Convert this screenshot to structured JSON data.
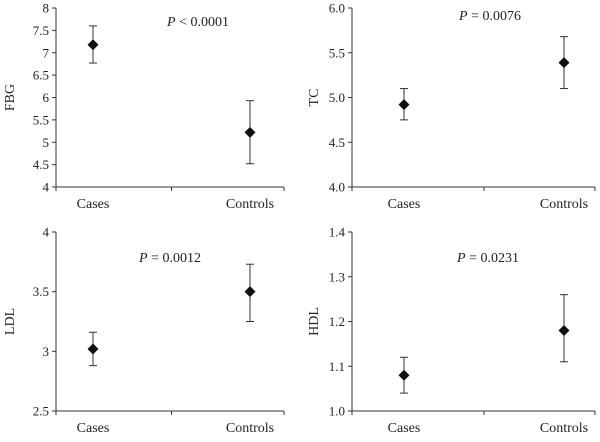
{
  "chart_data": [
    {
      "type": "scatter",
      "ylabel": "FBG",
      "categories": [
        "Cases",
        "Controls"
      ],
      "ylim": [
        4,
        8
      ],
      "yticks": [
        "4",
        "4.5",
        "5",
        "5.5",
        "6",
        "6.5",
        "7",
        "7.5",
        "8"
      ],
      "values": [
        7.18,
        5.22
      ],
      "err_low": [
        6.77,
        4.52
      ],
      "err_high": [
        7.6,
        5.93
      ],
      "annotation": {
        "italic": "P",
        "rest": " < 0.0001"
      },
      "grid": false
    },
    {
      "type": "scatter",
      "ylabel": "TC",
      "categories": [
        "Cases",
        "Controls"
      ],
      "ylim": [
        4.0,
        6.0
      ],
      "yticks": [
        "4.0",
        "4.5",
        "5.0",
        "5.5",
        "6.0"
      ],
      "values": [
        4.92,
        5.39
      ],
      "err_low": [
        4.75,
        5.1
      ],
      "err_high": [
        5.1,
        5.68
      ],
      "annotation": {
        "italic": "P",
        "rest": " = 0.0076"
      },
      "grid": false
    },
    {
      "type": "scatter",
      "ylabel": "LDL",
      "categories": [
        "Cases",
        "Controls"
      ],
      "ylim": [
        2.5,
        4
      ],
      "yticks": [
        "2.5",
        "3",
        "3.5",
        "4"
      ],
      "values": [
        3.02,
        3.5
      ],
      "err_low": [
        2.88,
        3.25
      ],
      "err_high": [
        3.16,
        3.73
      ],
      "annotation": {
        "italic": "P",
        "rest": " = 0.0012"
      },
      "grid": false
    },
    {
      "type": "scatter",
      "ylabel": "HDL",
      "categories": [
        "Cases",
        "Controls"
      ],
      "ylim": [
        1.0,
        1.4
      ],
      "yticks": [
        "1.0",
        "1.1",
        "1.2",
        "1.3",
        "1.4"
      ],
      "values": [
        1.08,
        1.18
      ],
      "err_low": [
        1.04,
        1.11
      ],
      "err_high": [
        1.12,
        1.26
      ],
      "annotation": {
        "italic": "P",
        "rest": " = 0.0231"
      },
      "grid": false
    }
  ]
}
